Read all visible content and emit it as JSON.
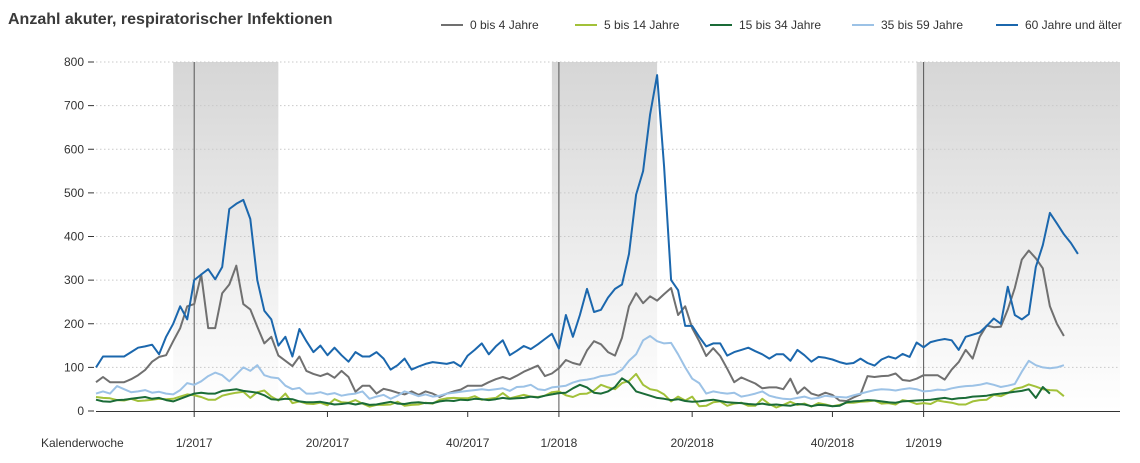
{
  "chart_data": {
    "type": "line",
    "title": "Anzahl akuter, respiratorischer Infektionen",
    "xlabel": "Kalenderwoche",
    "ylabel": "",
    "ylim": [
      0,
      800
    ],
    "yticks": [
      0,
      100,
      200,
      300,
      400,
      500,
      600,
      700,
      800
    ],
    "xlim": [
      0,
      146
    ],
    "x_ticks": [
      {
        "label": "Kalenderwoche",
        "x": null
      },
      {
        "label": "1/2017",
        "x": 14
      },
      {
        "label": "20/2017",
        "x": 33
      },
      {
        "label": "40/2017",
        "x": 53
      },
      {
        "label": "1/2018",
        "x": 66
      },
      {
        "label": "20/2018",
        "x": 85
      },
      {
        "label": "40/2018",
        "x": 105
      },
      {
        "label": "1/2019",
        "x": 118
      }
    ],
    "shaded_periods": [
      [
        11,
        26
      ],
      [
        65,
        80
      ],
      [
        117,
        146
      ]
    ],
    "vlines": [
      14,
      66,
      118
    ],
    "grid": true,
    "legend_position": "top",
    "series": [
      {
        "name": "0 bis 4 Jahre",
        "color": "#707070",
        "values": [
          66,
          78,
          66,
          66,
          66,
          73,
          82,
          94,
          113,
          124,
          128,
          160,
          190,
          240,
          245,
          313,
          190,
          190,
          270,
          290,
          333,
          245,
          233,
          193,
          155,
          170,
          127,
          115,
          103,
          125,
          92,
          85,
          80,
          86,
          76,
          92,
          78,
          44,
          58,
          58,
          40,
          51,
          47,
          42,
          38,
          45,
          37,
          45,
          40,
          32,
          40,
          45,
          49,
          58,
          58,
          58,
          66,
          73,
          78,
          73,
          81,
          90,
          97,
          104,
          80,
          86,
          98,
          117,
          110,
          106,
          139,
          160,
          153,
          135,
          127,
          168,
          240,
          270,
          247,
          263,
          253,
          268,
          282,
          220,
          240,
          190,
          160,
          126,
          144,
          126,
          97,
          66,
          77,
          70,
          63,
          52,
          54,
          54,
          50,
          74,
          40,
          54,
          40,
          35,
          42,
          37,
          24,
          23,
          31,
          38,
          80,
          78,
          80,
          81,
          86,
          71,
          69,
          74,
          82,
          82,
          82,
          72,
          95,
          112,
          140,
          120,
          170,
          196,
          192,
          193,
          233,
          282,
          347,
          368,
          350,
          327,
          240,
          200,
          172
        ]
      },
      {
        "name": "5 bis 14 Jahre",
        "color": "#a2c139",
        "values": [
          32,
          30,
          29,
          25,
          24,
          28,
          23,
          24,
          26,
          28,
          27,
          28,
          33,
          38,
          36,
          32,
          26,
          26,
          35,
          39,
          42,
          44,
          30,
          43,
          47,
          33,
          24,
          40,
          18,
          22,
          17,
          16,
          19,
          13,
          27,
          20,
          19,
          25,
          17,
          10,
          14,
          14,
          15,
          21,
          12,
          14,
          15,
          19,
          17,
          26,
          29,
          30,
          29,
          29,
          34,
          26,
          28,
          30,
          41,
          29,
          33,
          37,
          33,
          32,
          35,
          43,
          45,
          36,
          32,
          39,
          40,
          47,
          60,
          54,
          50,
          64,
          69,
          85,
          60,
          50,
          47,
          38,
          22,
          33,
          24,
          33,
          11,
          12,
          20,
          22,
          12,
          17,
          19,
          12,
          12,
          28,
          16,
          8,
          14,
          21,
          14,
          17,
          10,
          18,
          15,
          11,
          14,
          19,
          19,
          21,
          22,
          24,
          17,
          18,
          15,
          25,
          22,
          16,
          18,
          16,
          24,
          21,
          19,
          15,
          15,
          22,
          25,
          26,
          37,
          34,
          41,
          51,
          54,
          61,
          56,
          50,
          48,
          47,
          34
        ]
      },
      {
        "name": "15 bis 34 Jahre",
        "color": "#1a6b37",
        "values": [
          26,
          22,
          21,
          25,
          26,
          28,
          30,
          32,
          28,
          30,
          25,
          22,
          28,
          34,
          40,
          42,
          40,
          40,
          46,
          48,
          50,
          46,
          44,
          42,
          36,
          27,
          26,
          28,
          27,
          22,
          20,
          20,
          21,
          18,
          15,
          16,
          18,
          15,
          18,
          14,
          15,
          18,
          21,
          17,
          16,
          19,
          20,
          18,
          18,
          22,
          24,
          23,
          26,
          25,
          28,
          27,
          25,
          27,
          30,
          28,
          29,
          30,
          33,
          31,
          35,
          38,
          41,
          42,
          52,
          60,
          54,
          42,
          40,
          45,
          55,
          75,
          65,
          45,
          40,
          35,
          30,
          28,
          25,
          27,
          23,
          21,
          22,
          24,
          26,
          23,
          20,
          19,
          18,
          16,
          15,
          17,
          14,
          15,
          13,
          12,
          16,
          15,
          11,
          14,
          13,
          11,
          12,
          20,
          22,
          23,
          25,
          24,
          22,
          20,
          19,
          22,
          23,
          24,
          25,
          26,
          28,
          30,
          27,
          29,
          30,
          33,
          34,
          35,
          38,
          40,
          42,
          44,
          46,
          50,
          30,
          55,
          40
        ]
      },
      {
        "name": "35 bis 59 Jahre",
        "color": "#9cc2e6",
        "values": [
          40,
          45,
          40,
          57,
          50,
          43,
          45,
          48,
          42,
          44,
          40,
          38,
          48,
          64,
          60,
          68,
          80,
          88,
          82,
          68,
          84,
          100,
          92,
          105,
          82,
          77,
          75,
          58,
          50,
          53,
          40,
          40,
          43,
          38,
          41,
          35,
          38,
          40,
          45,
          28,
          33,
          37,
          28,
          35,
          45,
          40,
          34,
          38,
          33,
          35,
          40,
          42,
          44,
          46,
          48,
          50,
          48,
          50,
          52,
          46,
          55,
          56,
          60,
          50,
          48,
          54,
          56,
          58,
          65,
          70,
          72,
          75,
          80,
          82,
          85,
          95,
          115,
          130,
          162,
          172,
          160,
          155,
          156,
          130,
          100,
          74,
          64,
          40,
          45,
          42,
          40,
          42,
          33,
          36,
          40,
          45,
          35,
          31,
          28,
          27,
          30,
          33,
          28,
          30,
          35,
          33,
          32,
          31,
          36,
          40,
          44,
          48,
          50,
          49,
          47,
          50,
          52,
          50,
          45,
          46,
          49,
          48,
          52,
          55,
          57,
          58,
          60,
          64,
          60,
          55,
          58,
          62,
          90,
          115,
          105,
          100,
          98,
          100,
          105
        ]
      },
      {
        "name": "60 Jahre und älter",
        "color": "#1b67ad",
        "values": [
          100,
          125,
          125,
          125,
          125,
          135,
          145,
          148,
          152,
          130,
          170,
          200,
          240,
          210,
          300,
          313,
          325,
          302,
          330,
          463,
          475,
          484,
          440,
          300,
          230,
          210,
          150,
          170,
          125,
          188,
          160,
          135,
          150,
          128,
          145,
          128,
          113,
          135,
          125,
          125,
          135,
          120,
          95,
          105,
          120,
          95,
          102,
          108,
          112,
          110,
          108,
          112,
          102,
          127,
          140,
          155,
          130,
          148,
          162,
          128,
          138,
          149,
          142,
          153,
          165,
          177,
          143,
          220,
          170,
          220,
          280,
          227,
          232,
          260,
          280,
          290,
          360,
          496,
          550,
          680,
          770,
          560,
          300,
          277,
          195,
          195,
          170,
          148,
          155,
          155,
          127,
          135,
          140,
          145,
          137,
          130,
          120,
          130,
          130,
          115,
          140,
          128,
          113,
          124,
          122,
          118,
          112,
          108,
          110,
          120,
          110,
          104,
          118,
          125,
          120,
          131,
          124,
          157,
          146,
          158,
          162,
          165,
          162,
          140,
          170,
          175,
          180,
          195,
          212,
          200,
          285,
          220,
          210,
          222,
          330,
          380,
          454,
          430,
          405,
          385,
          360
        ]
      }
    ]
  }
}
